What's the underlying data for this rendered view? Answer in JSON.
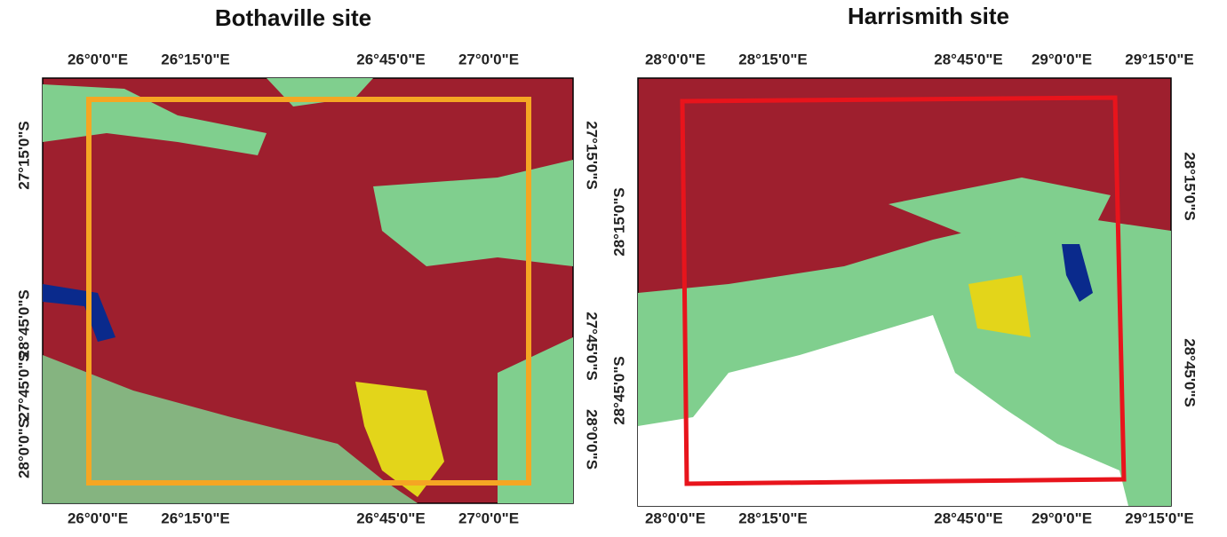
{
  "panels": [
    {
      "title": "Bothaville site",
      "top_labels": [
        "26°0'0\"E",
        "26°15'0\"E",
        "26°45'0\"E",
        "27°0'0\"E"
      ],
      "bottom_labels": [
        "26°0'0\"E",
        "26°15'0\"E",
        "26°45'0\"E",
        "27°0'0\"E"
      ],
      "left_labels": [
        "27°15'0\"S",
        "28°45'0\"S",
        "27°45'0\"S",
        "28°0'0\"S"
      ],
      "right_labels": [
        "27°15'0\"S",
        "27°45'0\"S",
        "28°0'0\"S"
      ]
    },
    {
      "title": "Harrismith site",
      "top_labels": [
        "28°0'0\"E",
        "28°15'0\"E",
        "28°45'0\"E",
        "29°0'0\"E",
        "29°15'0\"E"
      ],
      "bottom_labels": [
        "28°0'0\"E",
        "28°15'0\"E",
        "28°45'0\"E",
        "29°0'0\"E",
        "29°15'0\"E"
      ],
      "left_labels": [
        "28°15'0\"S",
        "28°45'0\"S"
      ],
      "right_labels": [
        "28°15'0\"S",
        "28°45'0\"S"
      ]
    }
  ]
}
